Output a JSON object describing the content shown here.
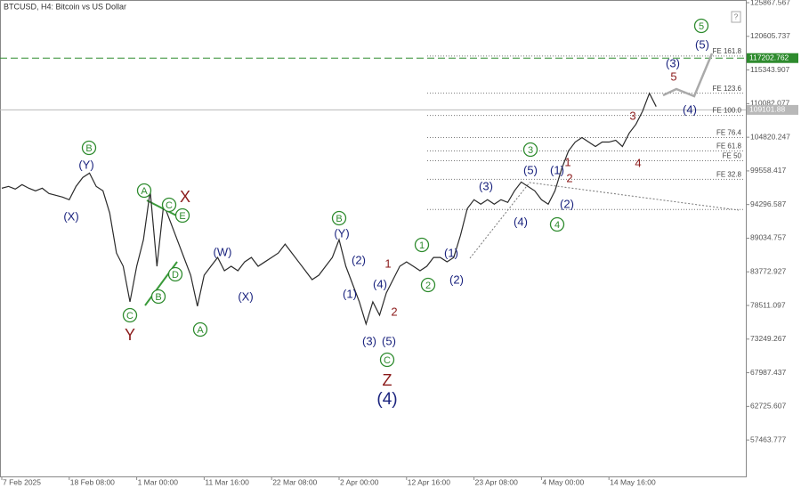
{
  "chart_data": {
    "type": "line",
    "title": "BTCUSD, H4: Bitcoin vs US Dollar",
    "help_icon": "?",
    "color": "#2a2a2a",
    "categories": [
      "7 Feb 2025",
      null,
      null,
      null,
      null,
      null,
      null,
      null,
      null,
      null,
      "18 Feb 08:00",
      null,
      null,
      null,
      null,
      null,
      null,
      null,
      null,
      null,
      "1 Mar 00:00",
      null,
      null,
      null,
      null,
      null,
      null,
      null,
      null,
      null,
      "11 Mar 16:00",
      null,
      null,
      null,
      null,
      null,
      null,
      null,
      null,
      null,
      "22 Mar 08:00",
      null,
      null,
      null,
      null,
      null,
      null,
      null,
      null,
      null,
      "2 Apr 00:00",
      null,
      null,
      null,
      null,
      null,
      null,
      null,
      null,
      null,
      "12 Apr 16:00",
      null,
      null,
      null,
      null,
      null,
      null,
      null,
      null,
      null,
      "23 Apr 08:00",
      null,
      null,
      null,
      null,
      null,
      null,
      null,
      null,
      null,
      "4 May 00:00",
      null,
      null,
      null,
      null,
      null,
      null,
      null,
      null,
      null,
      "14 May 16:00",
      null,
      null,
      null,
      null,
      null,
      null,
      null
    ],
    "values": [
      96850,
      97130,
      96710,
      97410,
      96850,
      96440,
      96850,
      96020,
      95740,
      95460,
      95050,
      97130,
      98520,
      99210,
      97130,
      96440,
      92960,
      86720,
      84640,
      79080,
      84640,
      88800,
      96440,
      84640,
      94350,
      91580,
      88800,
      86020,
      83250,
      78390,
      83250,
      84640,
      86020,
      83940,
      84640,
      83940,
      85330,
      86020,
      84640,
      85330,
      86020,
      86720,
      88110,
      86720,
      85330,
      83940,
      82550,
      83250,
      84640,
      86020,
      88800,
      84640,
      81860,
      79080,
      75610,
      79080,
      77000,
      80470,
      82550,
      84640,
      85330,
      84640,
      83940,
      84640,
      86020,
      86020,
      85330,
      86020,
      89500,
      93660,
      95050,
      94350,
      95050,
      94350,
      95050,
      94630,
      96440,
      97820,
      97130,
      96440,
      95050,
      94350,
      96440,
      99910,
      102680,
      104070,
      104770,
      104070,
      103380,
      104070,
      104070,
      104350,
      103380,
      105460,
      106850,
      108930,
      111710,
      109620
    ],
    "ylim": [
      51770,
      126290
    ],
    "yticks": [
      125867.567,
      120605.737,
      115343.907,
      110082.077,
      104820.247,
      99558.417,
      94296.587,
      89034.757,
      83772.927,
      78511.097,
      73249.267,
      67987.437,
      62725.607,
      57463.777
    ],
    "price_lines": [
      {
        "value": 117202.762,
        "color": "#2e8b2e",
        "style": "dashed"
      },
      {
        "value": 109101.88,
        "color": "#b8b8b8",
        "style": "solid"
      }
    ],
    "fe_levels": [
      {
        "label": "FE 161.8",
        "price": 117540
      },
      {
        "label": "FE 123.6",
        "price": 111710
      },
      {
        "label": "FE 100.0",
        "price": 108240
      },
      {
        "label": "FE 76.4",
        "price": 104770
      },
      {
        "label": "FE 61.8",
        "price": 102680
      },
      {
        "label": "FE 50",
        "price": 101150
      },
      {
        "label": "FE 32.8",
        "price": 98240
      },
      {
        "price": 93520
      }
    ],
    "waves": [
      {
        "text": "B",
        "style": "green-circle"
      },
      {
        "text": "(Y)",
        "style": "navy"
      },
      {
        "text": "(X)",
        "style": "navy"
      },
      {
        "text": "A",
        "style": "green-circle"
      },
      {
        "text": "X",
        "style": "red-large"
      },
      {
        "text": "C",
        "style": "green-circle"
      },
      {
        "text": "E",
        "style": "green-circle"
      },
      {
        "text": "D",
        "style": "green-circle"
      },
      {
        "text": "B",
        "style": "green-circle"
      },
      {
        "text": "C",
        "style": "green-circle"
      },
      {
        "text": "Y",
        "style": "red-large"
      },
      {
        "text": "A",
        "style": "green-circle"
      },
      {
        "text": "(W)",
        "style": "navy"
      },
      {
        "text": "(X)",
        "style": "navy"
      },
      {
        "text": "B",
        "style": "green-circle"
      },
      {
        "text": "(Y)",
        "style": "navy"
      },
      {
        "text": "(2)",
        "style": "navy"
      },
      {
        "text": "(1)",
        "style": "navy"
      },
      {
        "text": "(4)",
        "style": "navy"
      },
      {
        "text": "1",
        "style": "red"
      },
      {
        "text": "2",
        "style": "red"
      },
      {
        "text": "(3)",
        "style": "navy"
      },
      {
        "text": "(5)",
        "style": "navy"
      },
      {
        "text": "C",
        "style": "green-circle"
      },
      {
        "text": "Z",
        "style": "red-large"
      },
      {
        "text": "(4)",
        "style": "navy-large"
      },
      {
        "text": "1",
        "style": "green-circle"
      },
      {
        "text": "2",
        "style": "green-circle"
      },
      {
        "text": "(1)",
        "style": "navy"
      },
      {
        "text": "(2)",
        "style": "navy"
      },
      {
        "text": "(3)",
        "style": "navy"
      },
      {
        "text": "(4)",
        "style": "navy"
      },
      {
        "text": "3",
        "style": "green-circle"
      },
      {
        "text": "(5)",
        "style": "navy"
      },
      {
        "text": "(1)",
        "style": "navy"
      },
      {
        "text": "1",
        "style": "red"
      },
      {
        "text": "2",
        "style": "red"
      },
      {
        "text": "(2)",
        "style": "navy"
      },
      {
        "text": "4",
        "style": "green-circle"
      },
      {
        "text": "3",
        "style": "red"
      },
      {
        "text": "4",
        "style": "red"
      },
      {
        "text": "5",
        "style": "red"
      },
      {
        "text": "(3)",
        "style": "navy"
      },
      {
        "text": "(5)",
        "style": "navy"
      },
      {
        "text": "5",
        "style": "green-circle"
      },
      {
        "text": "(4)",
        "style": "navy"
      }
    ]
  }
}
